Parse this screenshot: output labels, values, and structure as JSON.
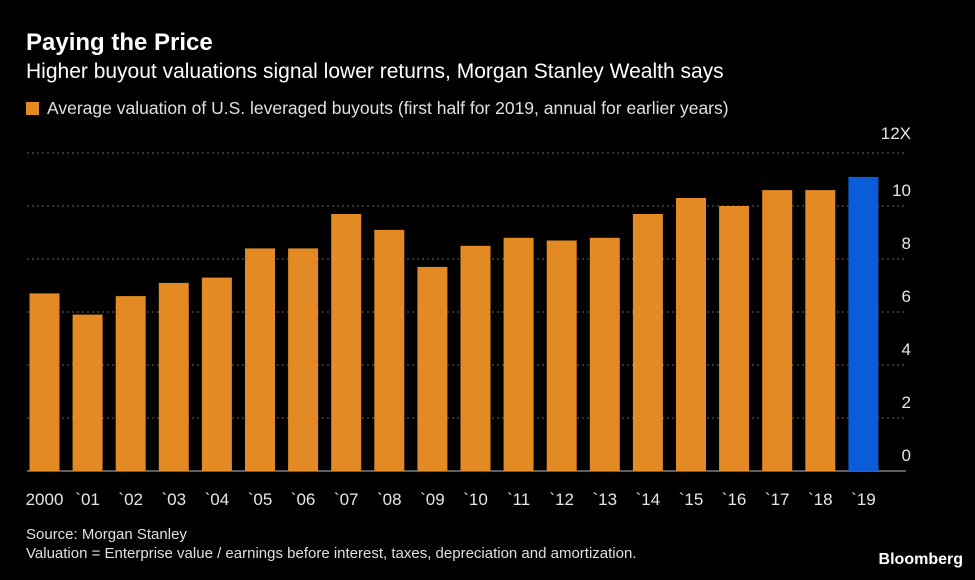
{
  "header": {
    "title": "Paying the Price",
    "subtitle": "Higher buyout valuations signal lower returns, Morgan Stanley Wealth says"
  },
  "legend": {
    "label": "Average valuation of U.S. leveraged buyouts (first half for 2019, annual for earlier years)",
    "color": "#e38a24"
  },
  "footer": {
    "source": "Source: Morgan Stanley",
    "note": "Valuation = Enterprise value / earnings before interest, taxes, depreciation and amortization.",
    "brand": "Bloomberg"
  },
  "chart_data": {
    "type": "bar",
    "categories": [
      "2000",
      "`01",
      "`02",
      "`03",
      "`04",
      "`05",
      "`06",
      "`07",
      "`08",
      "`09",
      "`10",
      "`11",
      "`12",
      "`13",
      "`14",
      "`15",
      "`16",
      "`17",
      "`18",
      "`19"
    ],
    "values": [
      6.7,
      5.9,
      6.6,
      7.1,
      7.3,
      8.4,
      8.4,
      9.7,
      9.1,
      7.7,
      8.5,
      8.8,
      8.7,
      8.8,
      9.7,
      10.3,
      10.0,
      10.6,
      10.6,
      11.1
    ],
    "colors": [
      "#e38a24",
      "#e38a24",
      "#e38a24",
      "#e38a24",
      "#e38a24",
      "#e38a24",
      "#e38a24",
      "#e38a24",
      "#e38a24",
      "#e38a24",
      "#e38a24",
      "#e38a24",
      "#e38a24",
      "#e38a24",
      "#e38a24",
      "#e38a24",
      "#e38a24",
      "#e38a24",
      "#e38a24",
      "#0a5cd8"
    ],
    "highlight_color": "#0a5cd8",
    "yticks": [
      "0",
      "2",
      "4",
      "6",
      "8",
      "10",
      "12X"
    ],
    "ylim": [
      0,
      12
    ],
    "grid": true,
    "y_axis_side": "right",
    "grid_color": "#666666"
  }
}
